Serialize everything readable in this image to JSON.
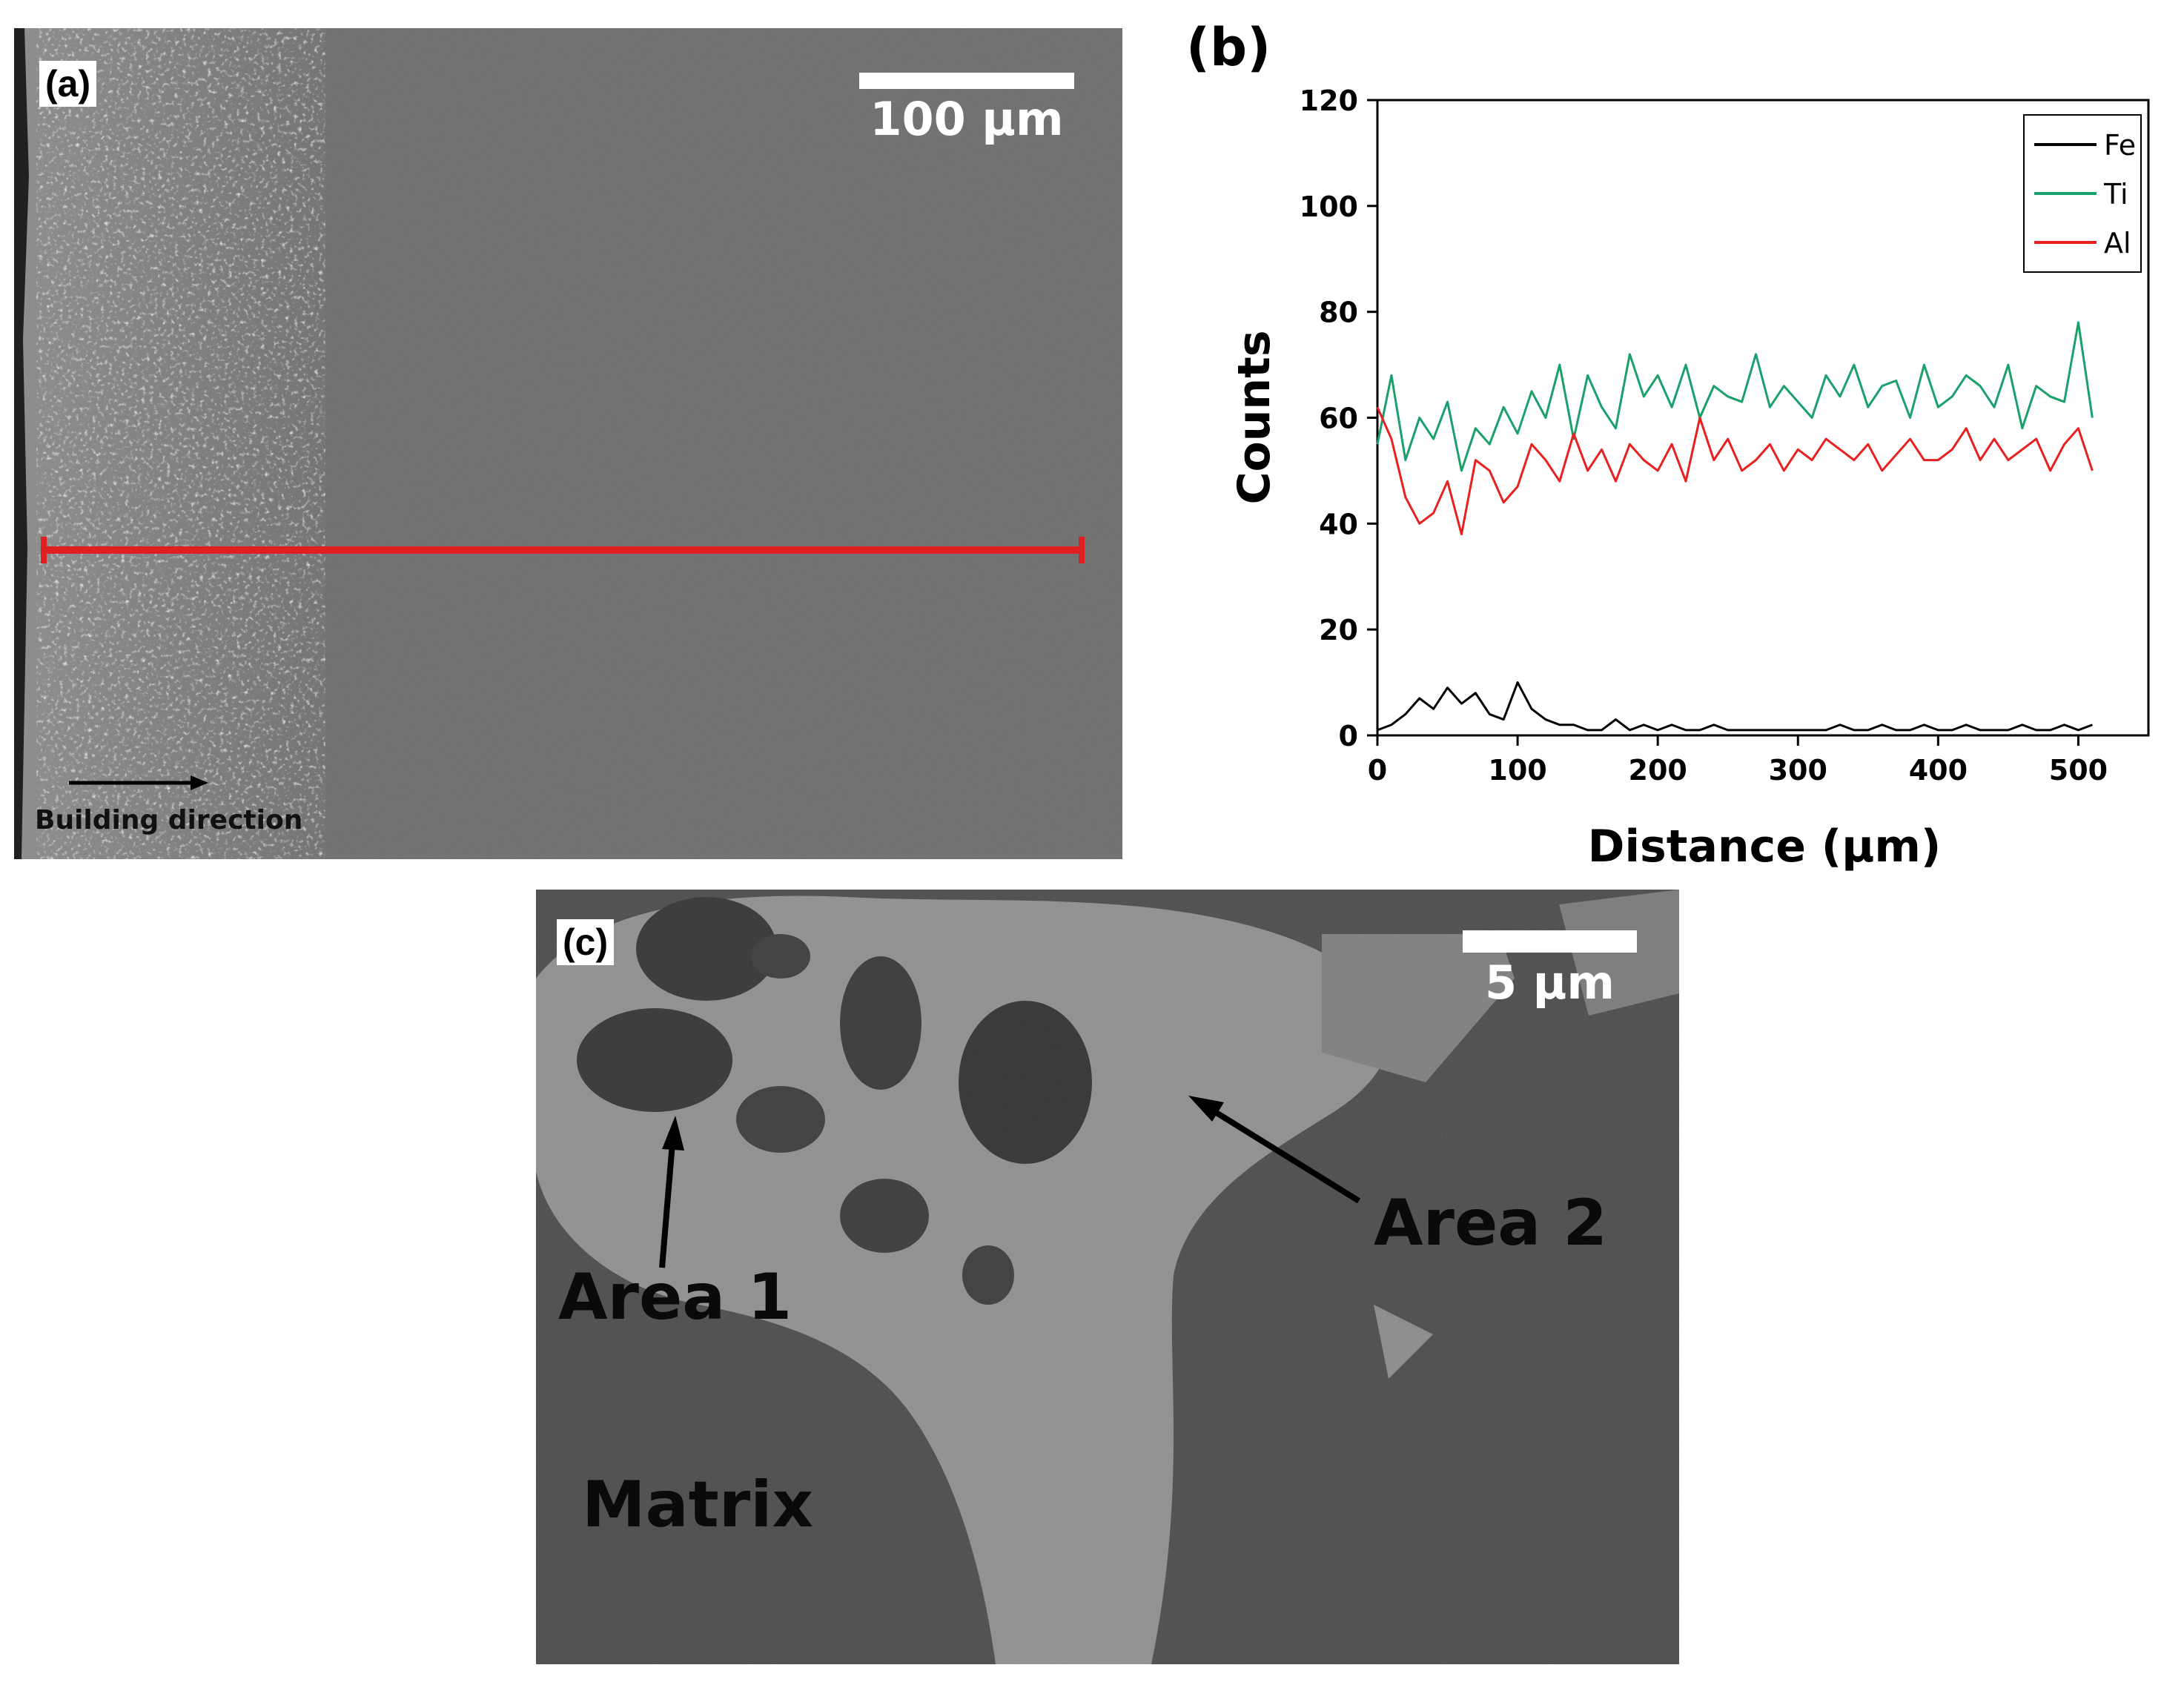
{
  "panel_a": {
    "label": "(a)",
    "scale_bar": "100 μm",
    "direction_label": "Building direction",
    "colors": {
      "line_scan": "#e02020"
    }
  },
  "panel_c": {
    "label": "(c)",
    "scale_bar": "5 μm",
    "annotations": {
      "area1": "Area 1",
      "area2": "Area 2",
      "matrix": "Matrix"
    }
  },
  "chart_data": {
    "type": "line",
    "panel_label": "(b)",
    "xlabel": "Distance (μm)",
    "ylabel": "Counts",
    "xlim": [
      0,
      550
    ],
    "ylim": [
      0,
      120
    ],
    "xticks": [
      0,
      100,
      200,
      300,
      400,
      500
    ],
    "yticks": [
      0,
      20,
      40,
      60,
      80,
      100,
      120
    ],
    "legend_position": "top-right",
    "grid": false,
    "x": [
      0,
      10,
      20,
      30,
      40,
      50,
      60,
      70,
      80,
      90,
      100,
      110,
      120,
      130,
      140,
      150,
      160,
      170,
      180,
      190,
      200,
      210,
      220,
      230,
      240,
      250,
      260,
      270,
      280,
      290,
      300,
      310,
      320,
      330,
      340,
      350,
      360,
      370,
      380,
      390,
      400,
      410,
      420,
      430,
      440,
      450,
      460,
      470,
      480,
      490,
      500,
      510
    ],
    "series": [
      {
        "name": "Fe",
        "color": "#000000",
        "values": [
          1,
          2,
          4,
          7,
          5,
          9,
          6,
          8,
          4,
          3,
          10,
          5,
          3,
          2,
          2,
          1,
          1,
          3,
          1,
          2,
          1,
          2,
          1,
          1,
          2,
          1,
          1,
          1,
          1,
          1,
          1,
          1,
          1,
          2,
          1,
          1,
          2,
          1,
          1,
          2,
          1,
          1,
          2,
          1,
          1,
          1,
          2,
          1,
          1,
          2,
          1,
          2
        ]
      },
      {
        "name": "Ti",
        "color": "#1aa06a",
        "values": [
          55,
          68,
          52,
          60,
          56,
          63,
          50,
          58,
          55,
          62,
          57,
          65,
          60,
          70,
          56,
          68,
          62,
          58,
          72,
          64,
          68,
          62,
          70,
          60,
          66,
          64,
          63,
          72,
          62,
          66,
          63,
          60,
          68,
          64,
          70,
          62,
          66,
          67,
          60,
          70,
          62,
          64,
          68,
          66,
          62,
          70,
          58,
          66,
          64,
          63,
          78,
          60
        ]
      },
      {
        "name": "Al",
        "color": "#e82020",
        "values": [
          62,
          56,
          45,
          40,
          42,
          48,
          38,
          52,
          50,
          44,
          47,
          55,
          52,
          48,
          57,
          50,
          54,
          48,
          55,
          52,
          50,
          55,
          48,
          60,
          52,
          56,
          50,
          52,
          55,
          50,
          54,
          52,
          56,
          54,
          52,
          55,
          50,
          53,
          56,
          52,
          52,
          54,
          58,
          52,
          56,
          52,
          54,
          56,
          50,
          55,
          58,
          50
        ]
      }
    ]
  }
}
